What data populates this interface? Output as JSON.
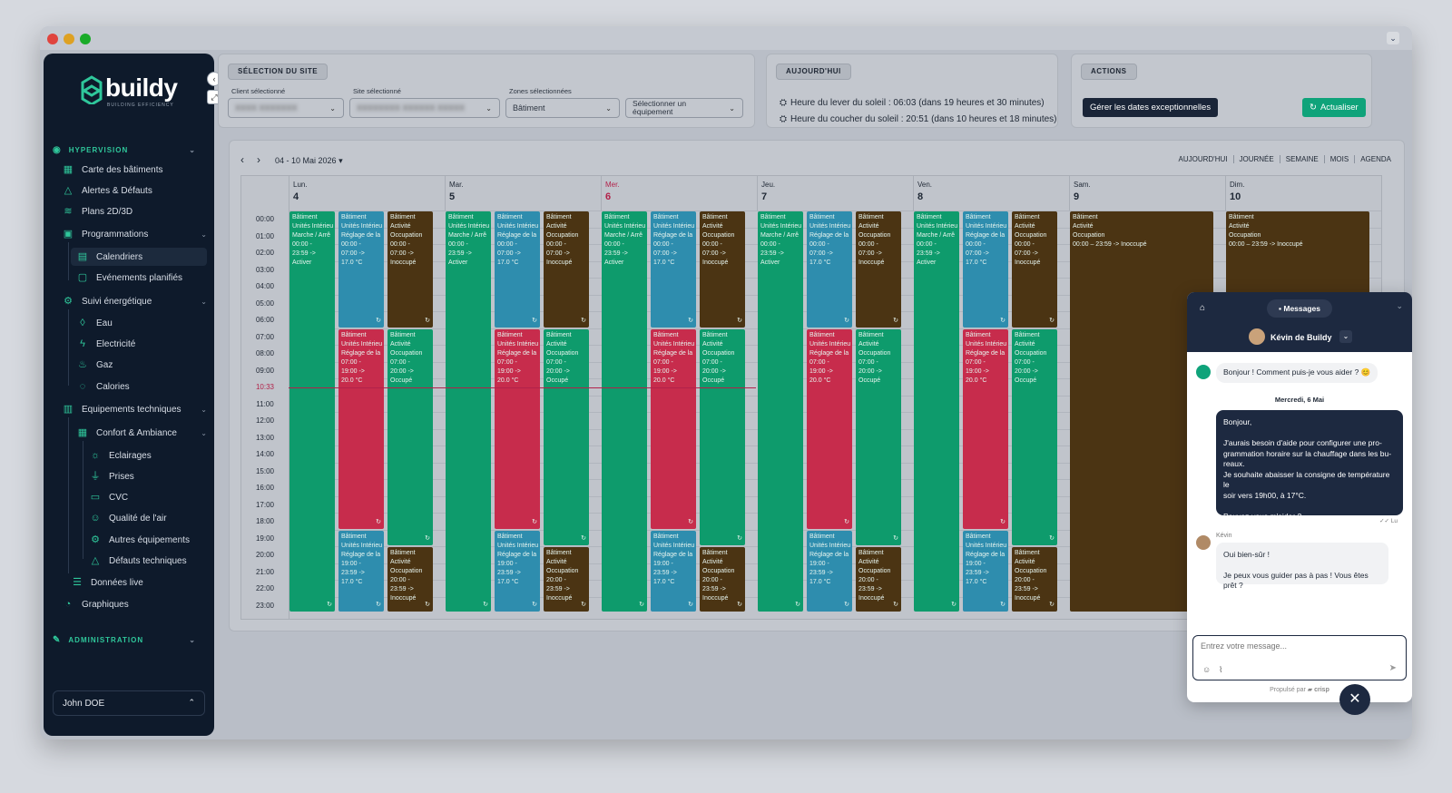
{
  "sidebar": {
    "brand": "buildy",
    "brand_sub": "BUILDING EFFICIENCY",
    "hypervision_label": "HYPERVISION",
    "items": [
      {
        "label": "Carte des bâtiments"
      },
      {
        "label": "Alertes & Défauts"
      },
      {
        "label": "Plans 2D/3D"
      },
      {
        "label": "Programmations"
      },
      {
        "label": "Calendriers"
      },
      {
        "label": "Evénements planifiés"
      },
      {
        "label": "Suivi énergétique"
      },
      {
        "label": "Eau"
      },
      {
        "label": "Electricité"
      },
      {
        "label": "Gaz"
      },
      {
        "label": "Calories"
      },
      {
        "label": "Equipements techniques"
      },
      {
        "label": "Confort & Ambiance"
      },
      {
        "label": "Eclairages"
      },
      {
        "label": "Prises"
      },
      {
        "label": "CVC"
      },
      {
        "label": "Qualité de l'air"
      },
      {
        "label": "Autres équipements"
      },
      {
        "label": "Défauts techniques"
      },
      {
        "label": "Données live"
      },
      {
        "label": "Graphiques"
      }
    ],
    "administration_label": "ADMINISTRATION",
    "user": "John DOE"
  },
  "site": {
    "title": "SÉLECTION DU SITE",
    "client_label": "Client sélectionné",
    "client_value": "XXXX XXXXXXX",
    "site_label": "Site sélectionné",
    "site_value": "XXXXXXXX XXXXXX XXXXX",
    "zones_label": "Zones sélectionnées",
    "zones_value": "Bâtiment",
    "equip_placeholder": "Sélectionner un équipement"
  },
  "today": {
    "title": "AUJOURD'HUI",
    "sunrise": "Heure du lever du soleil : 06:03 (dans 19 heures et 30 minutes)",
    "sunset": "Heure du coucher du soleil : 20:51 (dans 10 heures et 18 minutes)"
  },
  "actions": {
    "title": "ACTIONS",
    "exceptional_dates": "Gérer les dates exceptionnelles",
    "refresh": "Actualiser"
  },
  "calendar": {
    "range": "04 - 10 Mai 2026",
    "views": [
      "AUJOURD'HUI",
      "JOURNÉE",
      "SEMAINE",
      "MOIS",
      "AGENDA"
    ],
    "days": [
      {
        "name": "Lun.",
        "num": "4"
      },
      {
        "name": "Mar.",
        "num": "5"
      },
      {
        "name": "Mer.",
        "num": "6"
      },
      {
        "name": "Jeu.",
        "num": "7"
      },
      {
        "name": "Ven.",
        "num": "8"
      },
      {
        "name": "Sam.",
        "num": "9"
      },
      {
        "name": "Dim.",
        "num": "10"
      }
    ],
    "now_label": "10:33",
    "hours": [
      "00:00",
      "01:00",
      "02:00",
      "03:00",
      "04:00",
      "05:00",
      "06:00",
      "07:00",
      "08:00",
      "09:00",
      "10:33",
      "11:00",
      "12:00",
      "13:00",
      "14:00",
      "15:00",
      "16:00",
      "17:00",
      "18:00",
      "19:00",
      "20:00",
      "21:00",
      "22:00",
      "23:00"
    ],
    "ev_a": [
      "Bâtiment",
      "Unités Intérieu",
      "Marche / Arrê",
      "00:00 -",
      "23:59 ->",
      "Activer"
    ],
    "ev_b1": [
      "Bâtiment",
      "Unités Intérieu",
      "Réglage de la",
      "00:00 -",
      "07:00 ->",
      "17.0 °C"
    ],
    "ev_b2": [
      "Bâtiment",
      "Unités Intérieu",
      "Réglage de la",
      "07:00 -",
      "19:00 ->",
      "20.0 °C"
    ],
    "ev_b3": [
      "Bâtiment",
      "Unités Intérieu",
      "Réglage de la",
      "19:00 -",
      "23:59 ->",
      "17.0 °C"
    ],
    "ev_c1": [
      "Bâtiment",
      "Activité",
      "Occupation",
      "00:00 -",
      "07:00 ->",
      "Inoccupé"
    ],
    "ev_c2": [
      "Bâtiment",
      "Activité",
      "Occupation",
      "07:00 -",
      "20:00 ->",
      "Occupé"
    ],
    "ev_c3": [
      "Bâtiment",
      "Activité",
      "Occupation",
      "20:00 -",
      "23:59 ->",
      "Inoccupé"
    ],
    "ev_we": [
      "Bâtiment",
      "Activité",
      "Occupation",
      "00:00 – 23:59 -> Inoccupé"
    ]
  },
  "chat": {
    "tab": "Messages",
    "agent": "Kévin de Buildy",
    "greeting": "Bonjour ! Comment puis-je vous aider ? 😊",
    "date": "Mercredi, 6 Mai",
    "user_msg": [
      "Bonjour,",
      "",
      "J'aurais besoin d'aide pour configurer une pro-",
      "grammation horaire sur la chauffage dans les bu-",
      "reaux.",
      "Je souhaite abaisser la consigne de température le",
      "soir vers 19h00, à 17°C.",
      "",
      "Pouvez-vous m'aider ?"
    ],
    "read": "Lu",
    "agent_name": "Kévin",
    "reply1": "Oui bien-sûr !",
    "reply2": "Je peux vous guider pas à pas ! Vous êtes prêt ?",
    "placeholder": "Entrez votre message...",
    "powered": "Propulsé par",
    "crisp": "crisp"
  }
}
